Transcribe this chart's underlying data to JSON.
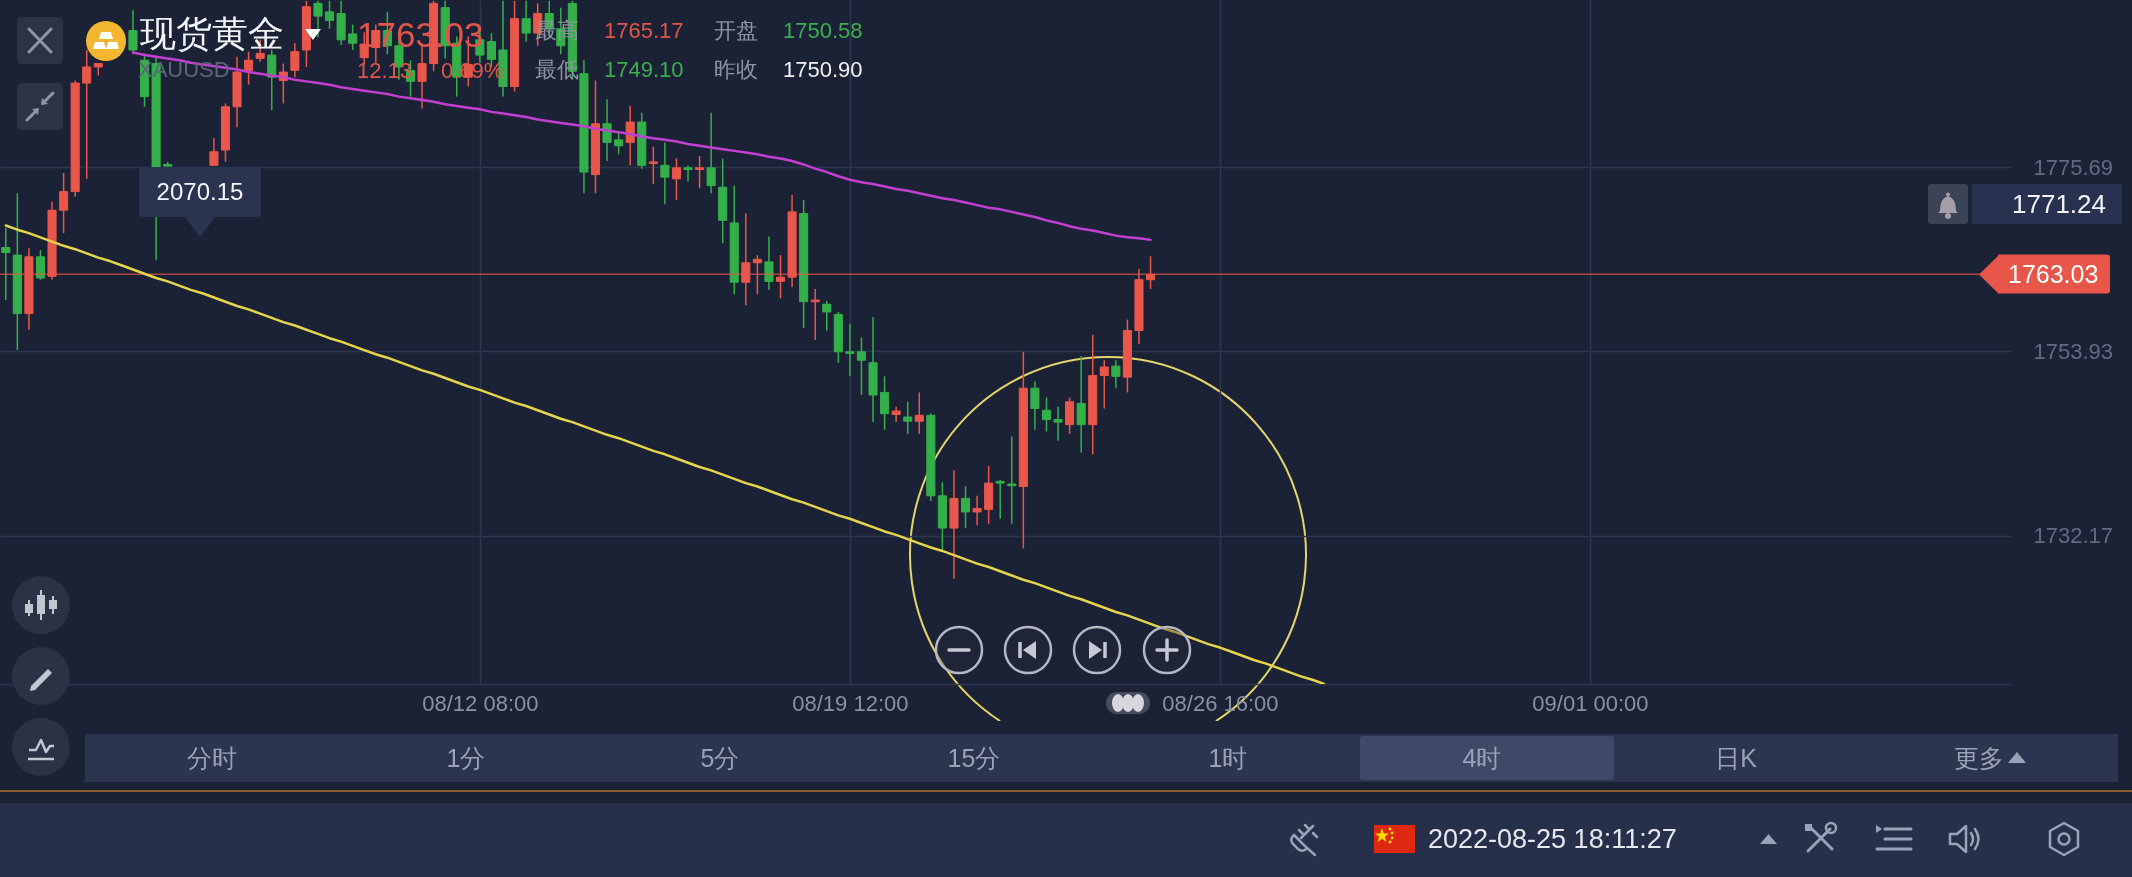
{
  "chart_data": {
    "type": "candlestick",
    "title": "现货黄金",
    "subtitle": "XAUUSD",
    "annotations": [
      "1763.03",
      "12.13",
      "0.69%",
      "最高",
      "1765.17",
      "最低",
      "1749.10",
      "开盘",
      "1750.58",
      "昨收",
      "1750.90",
      "2070.15",
      "1771.24",
      "分时",
      "1分",
      "5分",
      "15分",
      "1时",
      "4时",
      "日K",
      "更多",
      "2022-08-25 18:11:27"
    ],
    "categories": [
      null,
      null,
      null,
      null,
      null,
      null,
      null,
      null,
      null,
      null,
      null,
      null,
      null,
      null,
      null,
      null,
      null,
      null,
      null,
      null,
      null,
      null,
      null,
      null,
      null,
      null,
      null,
      null,
      null,
      null,
      null,
      null,
      null,
      null,
      null,
      null,
      null,
      null,
      null,
      null,
      null,
      "08/12 08:00",
      null,
      null,
      null,
      null,
      null,
      null,
      null,
      null,
      null,
      null,
      null,
      null,
      null,
      null,
      null,
      null,
      null,
      null,
      null,
      null,
      null,
      null,
      null,
      null,
      null,
      null,
      null,
      null,
      null,
      null,
      null,
      "08/19 12:00",
      null,
      null,
      null,
      null,
      null,
      null,
      null,
      null,
      null,
      null,
      null,
      null,
      null,
      null,
      null,
      null,
      null,
      null,
      null,
      null,
      null,
      null,
      null,
      null,
      null,
      null,
      null,
      null,
      null,
      null,
      null,
      "08/26 16:00",
      null,
      null,
      null,
      null,
      null,
      null,
      null,
      null,
      null,
      null,
      null,
      null,
      null,
      null,
      null,
      null,
      null,
      null,
      null,
      null,
      null,
      null,
      null,
      null,
      null,
      null,
      null,
      null,
      null,
      null,
      null,
      "09/01 00:00",
      null,
      null,
      null,
      null,
      null,
      null,
      null,
      null,
      null,
      null,
      null,
      null,
      null,
      null,
      null,
      null,
      null,
      null,
      null,
      null,
      null,
      null,
      null,
      null,
      null,
      null,
      null,
      null,
      null,
      null,
      null,
      null,
      null,
      null,
      null,
      null
    ],
    "ohlc": [
      [
        1766.2,
        1768.5,
        1760.0,
        1765.6
      ],
      [
        1765.3,
        1772.6,
        1754.1,
        1758.4
      ],
      [
        1758.4,
        1766.1,
        1756.5,
        1765.1
      ],
      [
        1765.1,
        1765.9,
        1762.4,
        1762.6
      ],
      [
        1762.8,
        1771.6,
        1762.4,
        1770.6
      ],
      [
        1770.6,
        1775.0,
        1767.9,
        1772.8
      ],
      [
        1772.8,
        1785.9,
        1772.2,
        1785.6
      ],
      [
        1785.6,
        1789.5,
        1774.3,
        1787.5
      ],
      [
        1787.5,
        1787.9,
        1786.5,
        1787.9
      ],
      null,
      null,
      [
        1791.8,
        1794.2,
        1789.1,
        1789.5
      ],
      [
        1788.3,
        1789.1,
        1782.8,
        1784.0
      ],
      [
        1787.9,
        1788.7,
        1764.7,
        1775.7
      ],
      [
        1776.0,
        1776.3,
        1775.8,
        1775.8
      ],
      null,
      null,
      null,
      [
        1775.9,
        1779.1,
        1775.9,
        1777.5
      ],
      [
        1777.7,
        1783.2,
        1776.3,
        1782.8
      ],
      [
        1782.8,
        1788.7,
        1780.4,
        1786.9
      ],
      [
        1787.1,
        1789.3,
        1785.4,
        1788.3
      ],
      [
        1788.5,
        1790.7,
        1788.1,
        1789.1
      ],
      [
        1788.9,
        1789.5,
        1782.4,
        1786.3
      ],
      [
        1785.9,
        1787.9,
        1783.2,
        1786.9
      ],
      [
        1787.1,
        1790.3,
        1786.3,
        1789.3
      ],
      [
        1789.5,
        1795.3,
        1787.5,
        1794.6
      ],
      [
        1795.0,
        1795.3,
        1791.0,
        1793.5
      ],
      [
        1794.0,
        1795.3,
        1792.0,
        1793.0
      ],
      [
        1793.8,
        1795.3,
        1790.1,
        1790.7
      ],
      [
        1791.4,
        1792.5,
        1789.5,
        1790.3
      ],
      [
        1788.6,
        1791.6,
        1787.8,
        1790.2
      ],
      [
        1789.8,
        1792.5,
        1788.0,
        1791.8
      ],
      [
        1791.8,
        1794.0,
        1789.0,
        1790.0
      ],
      [
        1790.0,
        1791.0,
        1786.0,
        1787.5
      ],
      [
        1787.1,
        1788.3,
        1784.0,
        1785.8
      ],
      [
        1785.8,
        1790.3,
        1782.6,
        1787.9
      ],
      [
        1787.9,
        1795.3,
        1787.0,
        1795.0
      ],
      [
        1794.5,
        1795.3,
        1788.5,
        1790.0
      ],
      [
        1790.3,
        1791.1,
        1784.0,
        1786.3
      ],
      [
        1786.3,
        1791.1,
        1785.2,
        1787.8
      ],
      [
        1790.7,
        1792.0,
        1788.0,
        1788.9
      ],
      [
        1790.5,
        1791.5,
        1787.5,
        1788.4
      ],
      [
        1789.5,
        1795.3,
        1784.0,
        1785.2
      ],
      [
        1785.2,
        1795.3,
        1784.6,
        1793.2
      ],
      [
        1793.2,
        1795.3,
        1790.5,
        1791.5
      ],
      [
        1791.5,
        1795.0,
        1790.0,
        1793.8
      ],
      [
        1793.8,
        1795.3,
        1791.0,
        1792.0
      ],
      [
        1792.0,
        1794.5,
        1789.0,
        1790.0
      ],
      [
        1795.0,
        1795.3,
        1786.0,
        1787.0
      ],
      [
        1786.7,
        1788.3,
        1772.6,
        1775.1
      ],
      [
        1774.8,
        1785.9,
        1772.6,
        1780.8
      ],
      [
        1780.8,
        1783.7,
        1776.4,
        1778.6
      ],
      [
        1778.9,
        1779.7,
        1777.2,
        1778.2
      ],
      [
        1778.6,
        1782.9,
        1775.9,
        1781.0
      ],
      [
        1781.0,
        1782.1,
        1775.5,
        1775.9
      ],
      [
        1776.1,
        1778.1,
        1773.7,
        1776.3
      ],
      [
        1775.9,
        1778.6,
        1771.3,
        1774.5
      ],
      [
        1774.3,
        1776.7,
        1771.8,
        1775.6
      ],
      [
        1775.6,
        1775.9,
        1774.0,
        1775.4
      ],
      [
        1775.4,
        1777.0,
        1773.2,
        1775.6
      ],
      [
        1775.6,
        1782.1,
        1772.6,
        1773.5
      ],
      [
        1773.3,
        1776.7,
        1766.7,
        1769.4
      ],
      [
        1769.1,
        1773.5,
        1760.7,
        1762.1
      ],
      [
        1762.1,
        1770.2,
        1759.4,
        1764.4
      ],
      [
        1764.4,
        1765.3,
        1760.7,
        1764.8
      ],
      [
        1764.5,
        1767.5,
        1761.2,
        1762.2
      ],
      [
        1762.2,
        1765.3,
        1760.2,
        1762.7
      ],
      [
        1762.7,
        1772.4,
        1761.5,
        1770.4
      ],
      [
        1770.2,
        1771.8,
        1756.7,
        1759.8
      ],
      [
        1759.8,
        1761.3,
        1755.3,
        1760.0
      ],
      [
        1759.5,
        1759.9,
        1756.4,
        1758.6
      ],
      [
        1758.3,
        1758.6,
        1752.6,
        1753.9
      ],
      [
        1753.9,
        1757.2,
        1751.0,
        1753.7
      ],
      [
        1753.9,
        1755.6,
        1748.8,
        1752.9
      ],
      [
        1752.6,
        1758.0,
        1745.6,
        1748.8
      ],
      [
        1749.1,
        1751.0,
        1744.7,
        1746.6
      ],
      [
        1746.5,
        1747.4,
        1745.6,
        1746.9
      ],
      [
        1746.2,
        1748.0,
        1744.2,
        1745.7
      ],
      [
        1745.7,
        1749.1,
        1744.2,
        1746.4
      ],
      [
        1746.4,
        1746.6,
        1736.3,
        1736.9
      ],
      [
        1736.9,
        1738.5,
        1730.4,
        1733.1
      ],
      [
        1733.1,
        1739.9,
        1727.1,
        1736.6
      ],
      [
        1736.6,
        1738.0,
        1733.1,
        1735.0
      ],
      [
        1735.0,
        1736.9,
        1733.4,
        1735.4
      ],
      [
        1735.3,
        1740.4,
        1733.6,
        1738.4
      ],
      [
        1738.6,
        1738.8,
        1734.2,
        1738.4
      ],
      [
        1738.3,
        1743.9,
        1733.6,
        1738.1
      ],
      [
        1738.0,
        1753.9,
        1730.7,
        1749.6
      ],
      [
        1749.6,
        1750.4,
        1744.7,
        1747.2
      ],
      [
        1747.0,
        1748.5,
        1744.5,
        1745.9
      ],
      [
        1745.9,
        1747.4,
        1743.4,
        1745.6
      ],
      [
        1745.3,
        1748.5,
        1744.2,
        1748.0
      ],
      [
        1747.8,
        1753.4,
        1742.0,
        1745.3
      ],
      [
        1745.3,
        1755.9,
        1741.8,
        1751.1
      ],
      [
        1751.1,
        1752.9,
        1747.2,
        1752.1
      ],
      [
        1752.2,
        1752.9,
        1749.6,
        1751.0
      ],
      [
        1750.9,
        1757.7,
        1749.1,
        1756.4
      ],
      [
        1756.4,
        1763.7,
        1754.8,
        1762.4
      ],
      [
        1762.4,
        1765.17,
        1761.3,
        1763.03
      ],
      null,
      null,
      null,
      null,
      null,
      null,
      null,
      null,
      null,
      null,
      null,
      null,
      null,
      null,
      null,
      null,
      null,
      null,
      null,
      null,
      null,
      null,
      null,
      null,
      null,
      null,
      null,
      null,
      null,
      null,
      null,
      null,
      null,
      null,
      null,
      null,
      null,
      null,
      null,
      null,
      null,
      null,
      null,
      null,
      null,
      null,
      null,
      null,
      null,
      null,
      null,
      null,
      null,
      null,
      null,
      null,
      null,
      null,
      null,
      null,
      null,
      null,
      null,
      null,
      null,
      null,
      null,
      null,
      null,
      null,
      null,
      null,
      null,
      null
    ],
    "colors": [
      "#34b04a",
      "#34b04a",
      "#e9574a",
      "#34b04a",
      "#e9574a",
      "#e9574a",
      "#e9574a",
      "#e9574a",
      "#e9574a",
      null,
      null,
      "#34b04a",
      "#34b04a",
      "#34b04a",
      "#34b04a",
      null,
      null,
      null,
      "#e9574a",
      "#e9574a",
      "#e9574a",
      "#e9574a",
      "#e9574a",
      "#34b04a",
      "#e9574a",
      "#e9574a",
      "#e9574a",
      "#34b04a",
      "#34b04a",
      "#34b04a",
      "#34b04a",
      "#e9574a",
      "#e9574a",
      "#34b04a",
      "#34b04a",
      "#34b04a",
      "#e9574a",
      "#e9574a",
      "#34b04a",
      "#34b04a",
      "#e9574a",
      "#34b04a",
      "#34b04a",
      "#34b04a",
      "#e9574a",
      "#34b04a",
      "#e9574a",
      "#34b04a",
      "#34b04a",
      "#34b04a",
      "#34b04a",
      "#e9574a",
      "#34b04a",
      "#34b04a",
      "#e9574a",
      "#34b04a",
      "#e9574a",
      "#34b04a",
      "#e9574a",
      "#34b04a",
      "#e9574a",
      "#34b04a",
      "#34b04a",
      "#34b04a",
      "#e9574a",
      "#e9574a",
      "#34b04a",
      "#e9574a",
      "#e9574a",
      "#34b04a",
      "#e9574a",
      "#34b04a",
      "#34b04a",
      "#34b04a",
      "#34b04a",
      "#34b04a",
      "#34b04a",
      "#e9574a",
      "#34b04a",
      "#e9574a",
      "#34b04a",
      "#34b04a",
      "#e9574a",
      "#34b04a",
      "#e9574a",
      "#e9574a",
      "#34b04a",
      "#34b04a",
      "#e9574a",
      "#34b04a",
      "#34b04a",
      "#34b04a",
      "#e9574a",
      "#34b04a",
      "#e9574a",
      "#e9574a",
      "#34b04a",
      "#e9574a",
      "#e9574a",
      "#e9574a",
      null,
      null,
      null,
      null,
      null,
      null,
      null,
      null,
      null,
      null,
      null,
      null,
      null,
      null,
      null,
      null,
      null,
      null,
      null,
      null,
      null,
      null,
      null,
      null,
      null,
      null,
      null,
      null,
      null,
      null,
      null,
      null,
      null,
      null,
      null,
      null,
      null,
      null,
      null,
      null,
      null,
      null,
      null,
      null,
      null,
      null,
      null,
      null,
      null,
      null,
      null,
      null,
      null,
      null,
      null,
      null,
      null,
      null,
      null,
      null,
      null,
      null,
      null,
      null,
      null,
      null,
      null,
      null,
      null,
      null,
      null,
      null,
      null,
      null
    ],
    "series": [
      {
        "type": "line",
        "color": "#c23fd2",
        "values": [
          null,
          null,
          null,
          null,
          null,
          null,
          null,
          null,
          null,
          null,
          null,
          1789.2,
          1788.9,
          1788.7,
          1788.5,
          1788.3,
          1788.0,
          1787.8,
          1787.6,
          1787.4,
          1787.2,
          1786.9,
          1786.7,
          1786.5,
          1786.3,
          1786.0,
          1785.8,
          1785.6,
          1785.4,
          1785.1,
          1784.9,
          1784.7,
          1784.5,
          1784.3,
          1784.0,
          1783.8,
          1783.6,
          1783.4,
          1783.1,
          1782.9,
          1782.7,
          1782.5,
          1782.2,
          1782.0,
          1781.8,
          1781.6,
          1781.3,
          1781.1,
          1780.9,
          1780.7,
          1780.5,
          1780.2,
          1780.0,
          1779.8,
          1779.6,
          1779.3,
          1779.1,
          1778.9,
          1778.7,
          1778.4,
          1778.2,
          1778.0,
          1777.8,
          1777.6,
          1777.4,
          1777.2,
          1776.9,
          1776.7,
          1776.4,
          1776.0,
          1775.5,
          1775.1,
          1774.6,
          1774.2,
          1773.9,
          1773.7,
          1773.4,
          1773.1,
          1772.9,
          1772.6,
          1772.3,
          1772.0,
          1771.8,
          1771.5,
          1771.2,
          1770.9,
          1770.7,
          1770.4,
          1770.1,
          1769.8,
          1769.4,
          1769.1,
          1768.7,
          1768.4,
          1768.2,
          1767.9,
          1767.6,
          1767.4,
          1767.3,
          1767.1,
          null,
          null,
          null,
          null,
          null,
          null,
          null,
          null,
          null,
          null,
          null,
          null,
          null,
          null,
          null,
          null,
          null,
          null,
          null,
          null,
          null,
          null,
          null,
          null,
          null,
          null,
          null,
          null,
          null,
          null,
          null,
          null,
          null,
          null,
          null,
          null,
          null,
          null,
          null,
          null,
          null,
          null,
          null,
          null,
          null,
          null,
          null,
          null,
          null,
          null,
          null,
          null,
          null,
          null,
          null,
          null,
          null,
          null,
          null,
          null,
          null,
          null,
          null,
          null,
          null,
          null,
          null,
          null,
          null,
          null,
          null,
          null,
          null,
          null
        ]
      },
      {
        "type": "line",
        "color": "#e6d44c",
        "values": [
          1768.8,
          1768.3,
          1767.9,
          1767.4,
          1766.9,
          1766.4,
          1766.0,
          1765.5,
          1765.0,
          1764.6,
          1764.1,
          1763.6,
          1763.1,
          1762.6,
          1762.2,
          1761.7,
          1761.2,
          1760.8,
          1760.3,
          1759.8,
          1759.3,
          1758.9,
          1758.4,
          1757.9,
          1757.4,
          1757.0,
          1756.5,
          1756.0,
          1755.5,
          1755.1,
          1754.6,
          1754.1,
          1753.6,
          1753.2,
          1752.7,
          1752.2,
          1751.7,
          1751.3,
          1750.8,
          1750.3,
          1749.8,
          1749.4,
          1748.9,
          1748.4,
          1747.9,
          1747.5,
          1747.0,
          1746.5,
          1746.0,
          1745.6,
          1745.1,
          1744.6,
          1744.1,
          1743.7,
          1743.2,
          1742.7,
          1742.2,
          1741.8,
          1741.3,
          1740.8,
          1740.3,
          1739.9,
          1739.4,
          1738.9,
          1738.4,
          1738.0,
          1737.5,
          1737.0,
          1736.5,
          1736.1,
          1735.6,
          1735.1,
          1734.6,
          1734.2,
          1733.7,
          1733.2,
          1732.7,
          1732.3,
          1731.8,
          1731.3,
          1730.8,
          1730.4,
          1729.9,
          1729.4,
          1728.9,
          1728.5,
          1728.0,
          1727.5,
          1727.0,
          1726.6,
          1726.1,
          1725.6,
          1725.1,
          1724.7,
          1724.2,
          1723.7,
          1723.2,
          1722.8,
          1722.3,
          1721.8,
          1721.3,
          1720.9,
          1720.4,
          1719.9,
          1719.4,
          1719.0,
          1718.5,
          1718.0,
          1717.5,
          1717.1,
          1716.6,
          1716.1,
          1715.6,
          1715.2,
          1714.7,
          null,
          null,
          null,
          null,
          null,
          null,
          null,
          null,
          null,
          null,
          null,
          null,
          null,
          null,
          null,
          null,
          null,
          null,
          null,
          null,
          null,
          null,
          null,
          null,
          null,
          null,
          null,
          null,
          null,
          null,
          null,
          null,
          null,
          null,
          null,
          null,
          null,
          null,
          null,
          null,
          null,
          null,
          null,
          null,
          null,
          null,
          null,
          null,
          null,
          null,
          null,
          null,
          null,
          null,
          null,
          null,
          null,
          null,
          null
        ]
      }
    ],
    "ylim": [
      1714.7,
      1795.4
    ],
    "yticks": [
      1732.17,
      1753.93,
      1775.69
    ],
    "ref_lines": [
      {
        "axis": "y",
        "value": 1763.03,
        "label": "1763.03",
        "color": "#e8564a"
      }
    ],
    "grid": true
  }
}
